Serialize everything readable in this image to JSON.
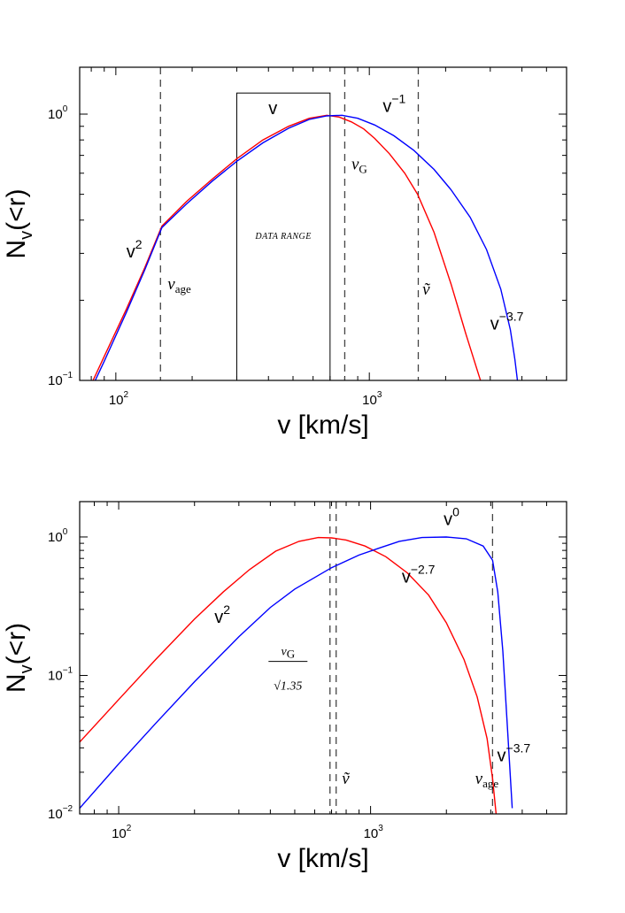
{
  "chart_data": [
    {
      "type": "line",
      "xscale": "log",
      "yscale": "log",
      "xlim": [
        72,
        6000
      ],
      "ylim": [
        0.1,
        1.5
      ],
      "xlabel": "v [km/s]",
      "ylabel_main": "N",
      "ylabel_sub": "v",
      "ylabel_tail": "(<r)",
      "xticks": [
        {
          "base": "10",
          "exp": "2",
          "value": 100
        },
        {
          "base": "10",
          "exp": "3",
          "value": 1000
        }
      ],
      "yticks": [
        {
          "base": "10",
          "exp": "0",
          "value": 1
        },
        {
          "base": "10",
          "exp": "−1",
          "value": 0.1
        }
      ],
      "grid": false,
      "series": [
        {
          "color": "#ff0000",
          "x": [
            72,
            90,
            110,
            130,
            152,
            190,
            240,
            300,
            380,
            480,
            580,
            680,
            760,
            850,
            950,
            1050,
            1200,
            1380,
            1550,
            1800,
            2100,
            2400,
            2700,
            2900
          ],
          "y": [
            0.078,
            0.123,
            0.185,
            0.265,
            0.38,
            0.47,
            0.57,
            0.68,
            0.8,
            0.9,
            0.965,
            0.99,
            0.975,
            0.935,
            0.88,
            0.81,
            0.71,
            0.6,
            0.5,
            0.36,
            0.23,
            0.15,
            0.105,
            0.085
          ]
        },
        {
          "color": "#0000ff",
          "x": [
            72,
            90,
            110,
            130,
            152,
            190,
            240,
            300,
            380,
            480,
            580,
            680,
            780,
            900,
            1050,
            1250,
            1500,
            1800,
            2100,
            2500,
            2900,
            3300,
            3600,
            3750,
            3850
          ],
          "y": [
            0.075,
            0.118,
            0.18,
            0.26,
            0.375,
            0.46,
            0.56,
            0.665,
            0.78,
            0.885,
            0.955,
            0.985,
            0.99,
            0.965,
            0.91,
            0.83,
            0.73,
            0.62,
            0.52,
            0.41,
            0.31,
            0.22,
            0.155,
            0.12,
            0.098
          ]
        }
      ],
      "vlines": [
        150,
        800,
        1560
      ],
      "box": {
        "x0": 300,
        "x1": 700,
        "y0": 0.1,
        "y1": 1.2,
        "label": "DATA RANGE"
      },
      "annotations": {
        "v": {
          "base": "v",
          "sup": "",
          "x": 400,
          "y": 1.0
        },
        "v_minus1": {
          "base": "v",
          "sup": "−1",
          "x": 1130,
          "y": 1.02
        },
        "v_squared": {
          "base": "v",
          "sup": "2",
          "x": 110,
          "y": 0.29
        },
        "v_minus3_7": {
          "base": "v",
          "sup": "−3.7",
          "x": 3000,
          "y": 0.155
        },
        "v_G": {
          "base": "v",
          "sub": "G",
          "x": 850,
          "y": 0.62
        },
        "v_age": {
          "base": "v",
          "sub": "age",
          "x": 160,
          "y": 0.22
        },
        "v_tilde": {
          "base": "ṽ",
          "x": 1620,
          "y": 0.21
        }
      }
    },
    {
      "type": "line",
      "xscale": "log",
      "yscale": "log",
      "xlim": [
        70,
        6000
      ],
      "ylim": [
        0.01,
        1.8
      ],
      "xlabel": "v [km/s]",
      "ylabel_main": "N",
      "ylabel_sub": "v",
      "ylabel_tail": "(<r)",
      "xticks": [
        {
          "base": "10",
          "exp": "2",
          "value": 100
        },
        {
          "base": "10",
          "exp": "3",
          "value": 1000
        }
      ],
      "yticks": [
        {
          "base": "10",
          "exp": "0",
          "value": 1
        },
        {
          "base": "10",
          "exp": "−1",
          "value": 0.1
        },
        {
          "base": "10",
          "exp": "−2",
          "value": 0.01
        }
      ],
      "grid": false,
      "series": [
        {
          "color": "#ff0000",
          "x": [
            70,
            100,
            140,
            200,
            260,
            330,
            420,
            520,
            620,
            700,
            800,
            950,
            1150,
            1400,
            1700,
            2000,
            2350,
            2650,
            2900,
            3050,
            3150
          ],
          "y": [
            0.033,
            0.067,
            0.13,
            0.255,
            0.4,
            0.58,
            0.79,
            0.93,
            0.99,
            0.985,
            0.95,
            0.86,
            0.72,
            0.55,
            0.38,
            0.24,
            0.13,
            0.07,
            0.035,
            0.018,
            0.01
          ]
        },
        {
          "color": "#0000ff",
          "x": [
            70,
            100,
            140,
            200,
            300,
            400,
            500,
            700,
            900,
            1100,
            1300,
            1600,
            2000,
            2400,
            2800,
            3050,
            3200,
            3350,
            3500,
            3650
          ],
          "y": [
            0.011,
            0.023,
            0.045,
            0.09,
            0.19,
            0.31,
            0.42,
            0.6,
            0.74,
            0.84,
            0.93,
            0.99,
            1.0,
            0.97,
            0.86,
            0.68,
            0.4,
            0.15,
            0.04,
            0.011
          ]
        }
      ],
      "vlines": [
        690,
        730,
        3050
      ],
      "annotations": {
        "v0": {
          "base": "v",
          "sup": "0",
          "x": 1950,
          "y": 1.22
        },
        "v_minus2_7": {
          "base": "v",
          "sup": "−2.7",
          "x": 1330,
          "y": 0.47
        },
        "v_squared": {
          "base": "v",
          "sup": "2",
          "x": 240,
          "y": 0.24
        },
        "v_minus3_7": {
          "base": "v",
          "sup": "−3.7",
          "x": 3180,
          "y": 0.024
        },
        "frac_num": {
          "text": "v",
          "sub": "G",
          "x": 470,
          "y": 0.14
        },
        "frac_den": {
          "text": "√1.35",
          "x": 470,
          "y": 0.086
        },
        "v_tilde": {
          "base": "ṽ",
          "x": 770,
          "y": 0.0165
        },
        "v_age": {
          "base": "v",
          "sub": "age",
          "x": 2600,
          "y": 0.0165
        }
      }
    }
  ]
}
